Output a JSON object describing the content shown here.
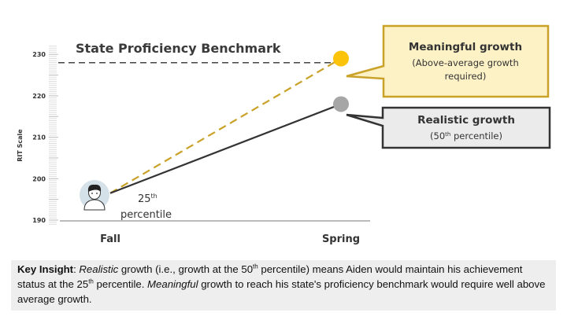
{
  "chart_data": {
    "type": "line",
    "ylabel": "RIT Scale",
    "ylim": [
      189,
      232
    ],
    "yticks": [
      190,
      200,
      210,
      220,
      230
    ],
    "categories": [
      "Fall",
      "Spring"
    ],
    "benchmark": {
      "label": "State Proficiency Benchmark",
      "value": 228
    },
    "series": [
      {
        "name": "Meaningful growth",
        "values": [
          196.5,
          229
        ],
        "style": "dashed",
        "color": "#c9a227",
        "marker_color": "#fcc30b"
      },
      {
        "name": "Realistic growth",
        "values": [
          196.5,
          218
        ],
        "style": "solid",
        "color": "#333333",
        "marker_color": "#a6a6a6"
      }
    ],
    "annotations": {
      "start_label_num": "25",
      "start_label_sup": "th",
      "start_label_word": "percentile",
      "meaningful_title": "Meaningful growth",
      "meaningful_sub1": "(Above-average growth",
      "meaningful_sub2": "required)",
      "realistic_title": "Realistic growth",
      "realistic_sub_pre": "(50",
      "realistic_sub_sup": "th",
      "realistic_sub_post": " percentile)"
    },
    "colors": {
      "callout_yellow_fill": "#fdf1c6",
      "callout_yellow_border": "#c9a227",
      "callout_gray_fill": "#ebebeb",
      "callout_gray_border": "#333333"
    }
  },
  "insight": {
    "lead": "Key Insight",
    "t1": ": ",
    "em1": "Realistic",
    "t2": " growth (i.e., growth at the 50",
    "sup1": "th",
    "t3": " percentile) means Aiden would maintain his achievement status at the 25",
    "sup2": "th",
    "t4": " percentile. ",
    "em2": "Meaningful",
    "t5": " growth to reach his state's proficiency benchmark would require well above average growth."
  },
  "icons": {
    "student": "student-avatar-icon"
  }
}
